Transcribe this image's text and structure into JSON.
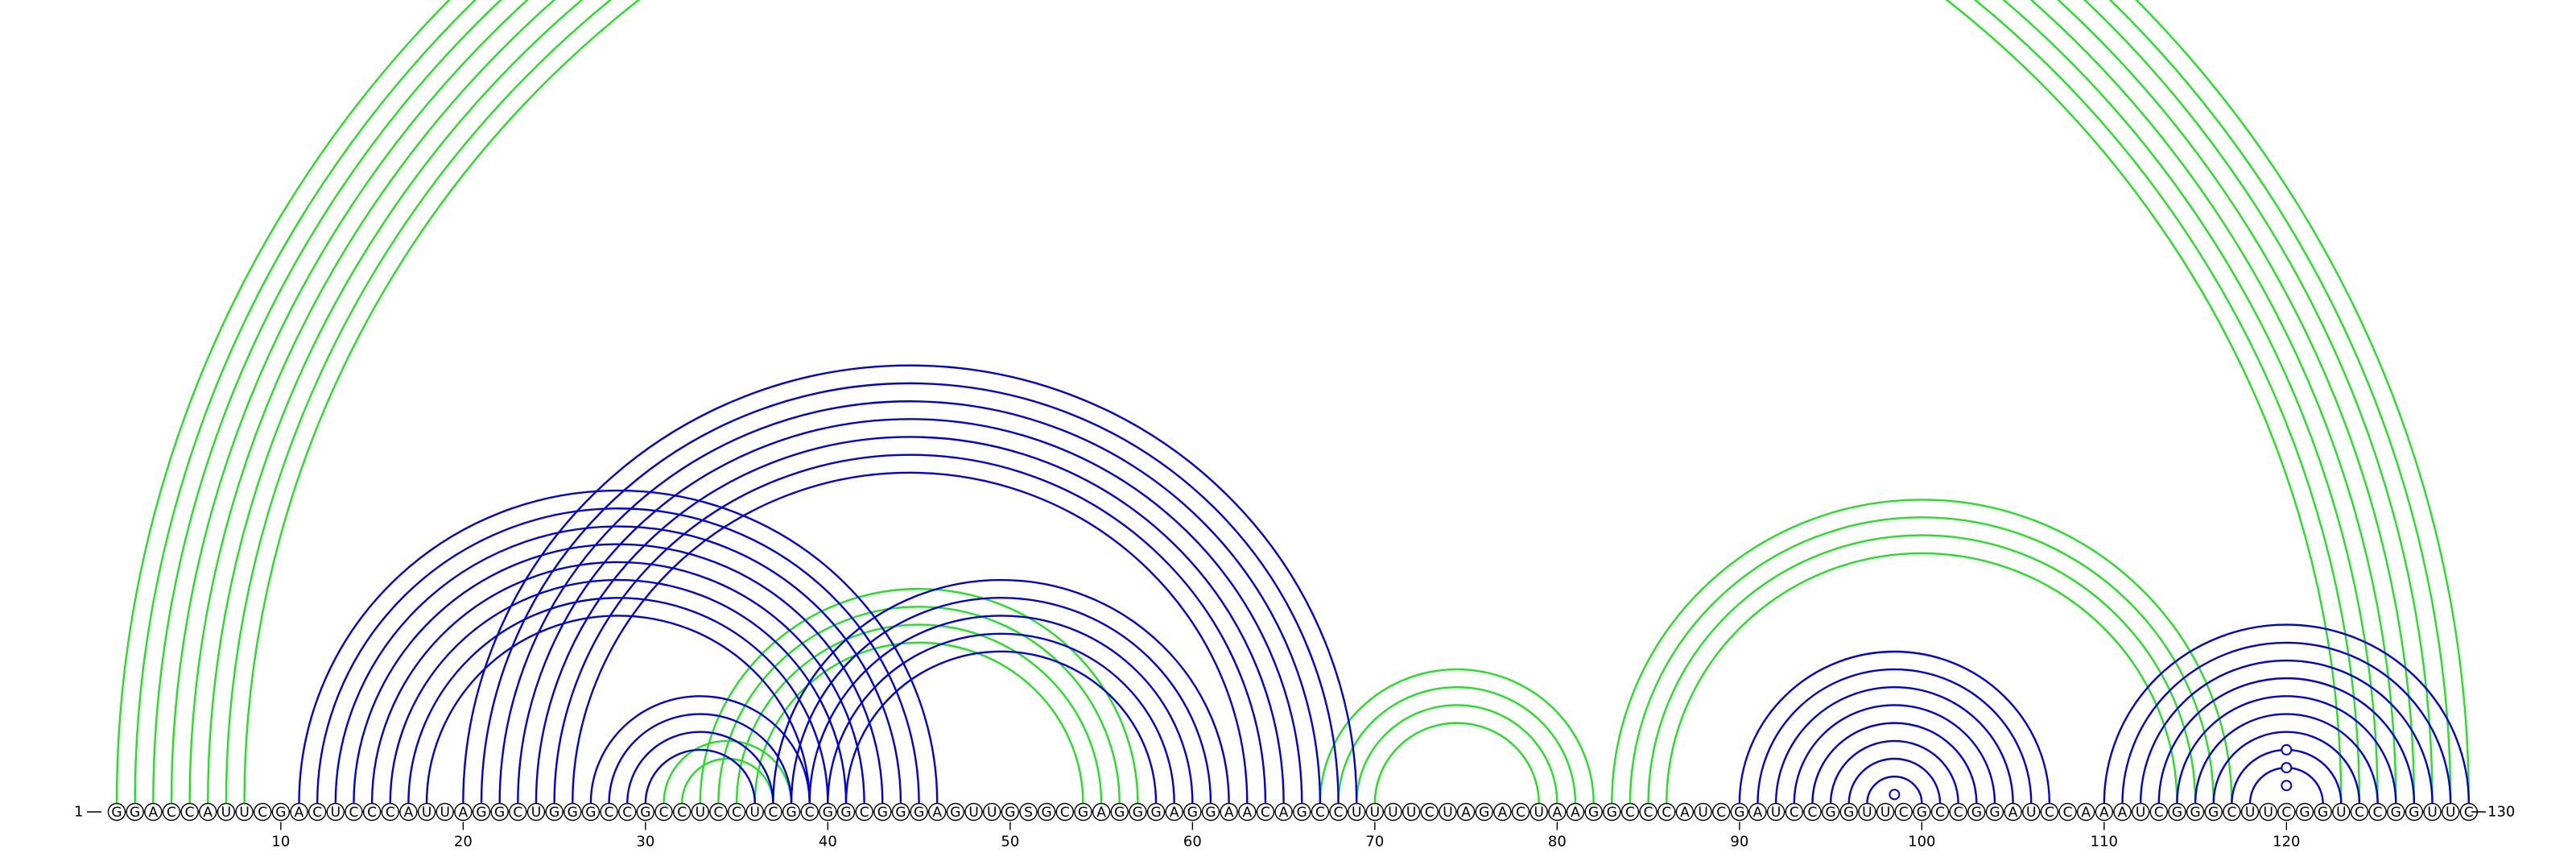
{
  "sequence": "GGACCAUUCGACUCCCAUUAGGCUGGGCCGCCUCCUCGCGGCGGGAGUUGSGCGAGGGAGGAACAGCCUUUUCUAGACUAAGGCCCAUCGAUCCGGUUCGCCGGAUCCAAAUCGGGCUUCGGUCCGGUUC",
  "labels": {
    "start": "1",
    "end": "130",
    "ticks": [
      "10",
      "20",
      "30",
      "40",
      "50",
      "60",
      "70",
      "80",
      "90",
      "100",
      "110",
      "120"
    ]
  },
  "colors": {
    "green_pairs": "#22e022",
    "blue_pairs": "#0000dd",
    "backbone": "#000000"
  },
  "tick_positions": [
    10,
    20,
    30,
    40,
    50,
    60,
    70,
    80,
    90,
    100,
    110,
    120
  ],
  "green_pairs": [
    [
      1,
      130
    ],
    [
      2,
      129
    ],
    [
      3,
      128
    ],
    [
      4,
      127
    ],
    [
      5,
      126
    ],
    [
      6,
      125
    ],
    [
      7,
      124
    ],
    [
      8,
      123
    ],
    [
      31,
      38
    ],
    [
      32,
      37
    ],
    [
      33,
      57
    ],
    [
      34,
      56
    ],
    [
      35,
      55
    ],
    [
      36,
      54
    ],
    [
      67,
      82
    ],
    [
      68,
      81
    ],
    [
      69,
      80
    ],
    [
      70,
      79
    ],
    [
      83,
      117
    ],
    [
      84,
      116
    ],
    [
      85,
      115
    ],
    [
      86,
      114
    ]
  ],
  "blue_pairs": [
    [
      11,
      46
    ],
    [
      12,
      45
    ],
    [
      13,
      44
    ],
    [
      14,
      43
    ],
    [
      15,
      42
    ],
    [
      16,
      41
    ],
    [
      17,
      40
    ],
    [
      18,
      39
    ],
    [
      20,
      69
    ],
    [
      21,
      68
    ],
    [
      22,
      67
    ],
    [
      23,
      66
    ],
    [
      24,
      65
    ],
    [
      25,
      64
    ],
    [
      26,
      63
    ],
    [
      27,
      39
    ],
    [
      28,
      38
    ],
    [
      29,
      37
    ],
    [
      30,
      36
    ],
    [
      37,
      62
    ],
    [
      38,
      61
    ],
    [
      39,
      60
    ],
    [
      40,
      59
    ],
    [
      41,
      58
    ],
    [
      90,
      107
    ],
    [
      91,
      106
    ],
    [
      92,
      105
    ],
    [
      93,
      104
    ],
    [
      94,
      103
    ],
    [
      95,
      102
    ],
    [
      96,
      101
    ],
    [
      97,
      100
    ],
    [
      110,
      130
    ],
    [
      111,
      129
    ],
    [
      112,
      128
    ],
    [
      113,
      127
    ],
    [
      114,
      126
    ],
    [
      115,
      125
    ],
    [
      116,
      124
    ],
    [
      117,
      123
    ],
    [
      118,
      122
    ]
  ]
}
